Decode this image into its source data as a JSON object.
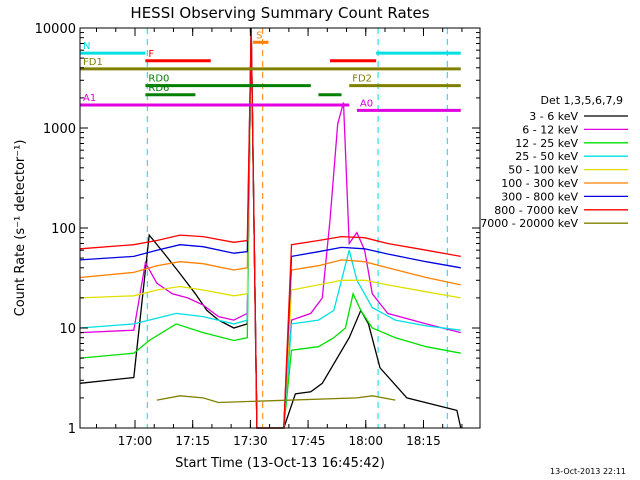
{
  "chart_data": {
    "type": "line",
    "title": "HESSI Observing Summary Count Rates",
    "xlabel": "Start Time (13-Oct-13 16:45:42)",
    "ylabel": "Count Rate (s⁻¹ detector⁻¹)",
    "yscale": "log",
    "ylim": [
      1,
      10000
    ],
    "xlim_minutes_after_start": [
      0,
      104
    ],
    "x_unit": "minutes after 16:45:42",
    "x_ticks": [
      {
        "label": "17:00",
        "value": 14.3
      },
      {
        "label": "17:15",
        "value": 29.3
      },
      {
        "label": "17:30",
        "value": 44.3
      },
      {
        "label": "17:45",
        "value": 59.3
      },
      {
        "label": "18:00",
        "value": 74.3
      },
      {
        "label": "18:15",
        "value": 89.3
      }
    ],
    "y_ticks": [
      {
        "label": "1",
        "value": 1
      },
      {
        "label": "10",
        "value": 10
      },
      {
        "label": "100",
        "value": 100
      },
      {
        "label": "1000",
        "value": 1000
      },
      {
        "label": "10000",
        "value": 10000
      }
    ],
    "legend_title": "Det 1,3,5,6,7,9",
    "legend_position": "right",
    "series": [
      {
        "name": "3 - 6 keV",
        "color": "#000000",
        "points": [
          [
            0,
            2.8
          ],
          [
            14,
            3.2
          ],
          [
            18,
            85
          ],
          [
            22,
            55
          ],
          [
            26,
            35
          ],
          [
            30,
            22
          ],
          [
            33,
            15
          ],
          [
            36,
            12
          ],
          [
            40,
            10
          ],
          [
            43.5,
            11
          ],
          [
            44.5,
            10000
          ],
          [
            46,
            1
          ],
          [
            53,
            1
          ],
          [
            56,
            2.2
          ],
          [
            60,
            2.3
          ],
          [
            63,
            2.8
          ],
          [
            70,
            8
          ],
          [
            73,
            15
          ],
          [
            75,
            11
          ],
          [
            78,
            4
          ],
          [
            85,
            2
          ],
          [
            98,
            1.5
          ],
          [
            99,
            1
          ]
        ]
      },
      {
        "name": "6 - 12 keV",
        "color": "#e000e0",
        "points": [
          [
            0,
            9
          ],
          [
            14,
            9.5
          ],
          [
            17,
            45
          ],
          [
            20,
            28
          ],
          [
            24,
            22
          ],
          [
            28,
            20
          ],
          [
            32,
            17
          ],
          [
            36,
            13
          ],
          [
            40,
            12
          ],
          [
            43.5,
            14
          ],
          [
            44.5,
            10000
          ],
          [
            46,
            1
          ],
          [
            53,
            1
          ],
          [
            55,
            12
          ],
          [
            60,
            14
          ],
          [
            63,
            20
          ],
          [
            65,
            120
          ],
          [
            67,
            1100
          ],
          [
            68.5,
            1800
          ],
          [
            70,
            70
          ],
          [
            72,
            90
          ],
          [
            74,
            60
          ],
          [
            76,
            22
          ],
          [
            80,
            14
          ],
          [
            90,
            11
          ],
          [
            99,
            9
          ]
        ]
      },
      {
        "name": "12 - 25 keV",
        "color": "#00e000",
        "points": [
          [
            0,
            5
          ],
          [
            14,
            5.6
          ],
          [
            18,
            7.5
          ],
          [
            25,
            11
          ],
          [
            32,
            9
          ],
          [
            40,
            7.5
          ],
          [
            43.5,
            8
          ],
          [
            44.5,
            10000
          ],
          [
            46,
            1
          ],
          [
            53,
            1
          ],
          [
            55,
            6
          ],
          [
            62,
            6.5
          ],
          [
            66,
            8
          ],
          [
            69,
            10
          ],
          [
            71,
            22
          ],
          [
            73,
            15
          ],
          [
            76,
            10
          ],
          [
            82,
            8
          ],
          [
            90,
            6.5
          ],
          [
            99,
            5.6
          ]
        ]
      },
      {
        "name": "25 - 50 keV",
        "color": "#00e0e0",
        "points": [
          [
            0,
            10
          ],
          [
            14,
            11
          ],
          [
            18,
            12
          ],
          [
            25,
            14
          ],
          [
            32,
            13
          ],
          [
            40,
            11
          ],
          [
            43.5,
            12
          ],
          [
            44.5,
            10000
          ],
          [
            46,
            1
          ],
          [
            53,
            1
          ],
          [
            55,
            11
          ],
          [
            62,
            12
          ],
          [
            66,
            15
          ],
          [
            70,
            60
          ],
          [
            72,
            30
          ],
          [
            76,
            16
          ],
          [
            82,
            12
          ],
          [
            90,
            10.5
          ],
          [
            99,
            9.5
          ]
        ]
      },
      {
        "name": "50 - 100 keV",
        "color": "#e0e000",
        "points": [
          [
            0,
            20
          ],
          [
            14,
            21
          ],
          [
            20,
            24
          ],
          [
            26,
            26
          ],
          [
            32,
            24
          ],
          [
            40,
            21
          ],
          [
            43.5,
            22
          ],
          [
            44.5,
            10000
          ],
          [
            46,
            1
          ],
          [
            53,
            1
          ],
          [
            55,
            24
          ],
          [
            62,
            27
          ],
          [
            68,
            30
          ],
          [
            74,
            30
          ],
          [
            80,
            27
          ],
          [
            90,
            23
          ],
          [
            99,
            20
          ]
        ]
      },
      {
        "name": "100 - 300 keV",
        "color": "#ff8000",
        "points": [
          [
            0,
            32
          ],
          [
            14,
            36
          ],
          [
            20,
            42
          ],
          [
            26,
            46
          ],
          [
            32,
            44
          ],
          [
            40,
            38
          ],
          [
            43.5,
            40
          ],
          [
            44.5,
            10000
          ],
          [
            46,
            1
          ],
          [
            53,
            1
          ],
          [
            55,
            38
          ],
          [
            62,
            42
          ],
          [
            68,
            48
          ],
          [
            74,
            46
          ],
          [
            80,
            40
          ],
          [
            90,
            32
          ],
          [
            99,
            27
          ]
        ]
      },
      {
        "name": "300 - 800 keV",
        "color": "#0000e0",
        "points": [
          [
            0,
            48
          ],
          [
            14,
            52
          ],
          [
            20,
            60
          ],
          [
            26,
            68
          ],
          [
            32,
            65
          ],
          [
            40,
            56
          ],
          [
            43.5,
            58
          ],
          [
            44.5,
            10000
          ],
          [
            46,
            1
          ],
          [
            53,
            1
          ],
          [
            55,
            52
          ],
          [
            62,
            58
          ],
          [
            68,
            64
          ],
          [
            74,
            62
          ],
          [
            80,
            55
          ],
          [
            90,
            46
          ],
          [
            99,
            40
          ]
        ]
      },
      {
        "name": "800 - 7000 keV",
        "color": "#ff0000",
        "points": [
          [
            0,
            62
          ],
          [
            14,
            68
          ],
          [
            20,
            75
          ],
          [
            26,
            85
          ],
          [
            32,
            82
          ],
          [
            40,
            72
          ],
          [
            43.5,
            75
          ],
          [
            44.5,
            10000
          ],
          [
            46,
            1
          ],
          [
            53,
            1
          ],
          [
            55,
            68
          ],
          [
            62,
            75
          ],
          [
            68,
            82
          ],
          [
            74,
            80
          ],
          [
            80,
            70
          ],
          [
            90,
            60
          ],
          [
            99,
            52
          ]
        ]
      },
      {
        "name": "7000 - 20000 keV",
        "color": "#808000",
        "points": [
          [
            20,
            1.9
          ],
          [
            26,
            2.1
          ],
          [
            32,
            2.0
          ],
          [
            36,
            1.8
          ],
          [
            72,
            2.0
          ],
          [
            76,
            2.1
          ],
          [
            82,
            1.9
          ]
        ]
      }
    ],
    "attenuator_levels": [
      {
        "label": "N",
        "value": 5600,
        "color": "#00e0e0",
        "segments": [
          [
            0,
            17
          ],
          [
            77,
            99
          ]
        ]
      },
      {
        "label": "F",
        "value": 4700,
        "color": "#ff0000",
        "segments": [
          [
            17,
            34
          ],
          [
            65,
            77
          ]
        ]
      },
      {
        "label": "S",
        "value": 7200,
        "color": "#ff8000",
        "segments": [
          [
            45,
            49
          ]
        ]
      },
      {
        "label": "FD1",
        "value": 3900,
        "color": "#808000",
        "segments": [
          [
            0,
            99
          ]
        ]
      },
      {
        "label": "RD0",
        "value": 2650,
        "color": "#008000",
        "segments": [
          [
            17,
            60
          ]
        ]
      },
      {
        "label": "RD6",
        "value": 2150,
        "color": "#008000",
        "segments": [
          [
            17,
            30
          ],
          [
            62,
            68
          ]
        ]
      },
      {
        "label": "FD2",
        "value": 2650,
        "color": "#808000",
        "segments": [
          [
            70,
            99
          ]
        ]
      },
      {
        "label": "A1",
        "value": 1700,
        "color": "#e000e0",
        "segments": [
          [
            0,
            70
          ]
        ]
      },
      {
        "label": "A0",
        "value": 1500,
        "color": "#e000e0",
        "segments": [
          [
            72,
            99
          ]
        ]
      }
    ],
    "event_markers": [
      {
        "value": 0,
        "color": "#00e0e0",
        "style": "dashed"
      },
      {
        "value": 17.5,
        "color": "#00e0e0",
        "style": "dashed"
      },
      {
        "value": 47.5,
        "color": "#ff8000",
        "style": "dashed"
      },
      {
        "value": 77.5,
        "color": "#00e0e0",
        "style": "dashed"
      },
      {
        "value": 95.5,
        "color": "#00e0e0",
        "style": "dashed"
      }
    ]
  },
  "footer_timestamp": "13-Oct-2013 22:11"
}
